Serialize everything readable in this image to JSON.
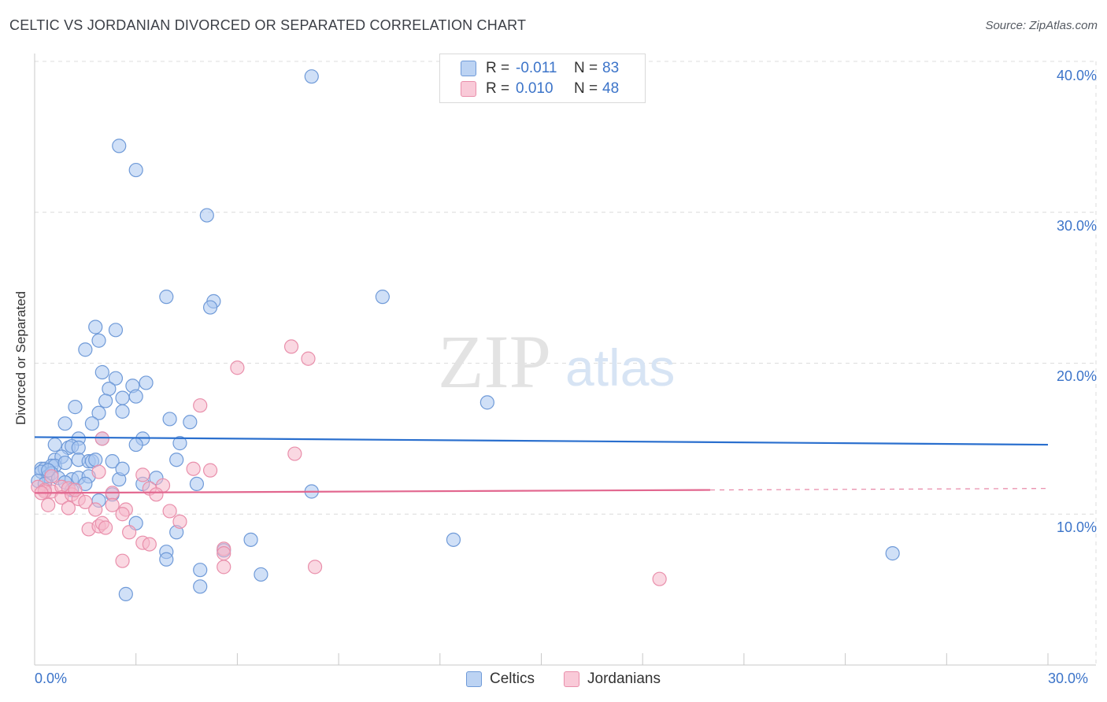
{
  "title": "CELTIC VS JORDANIAN DIVORCED OR SEPARATED CORRELATION CHART",
  "source": "Source: ZipAtlas.com",
  "watermark": {
    "zip": "ZIP",
    "atlas": "atlas"
  },
  "legend": {
    "rows": [
      {
        "r_label": "R =",
        "r_value": "-0.011",
        "n_label": "N =",
        "n_value": "83"
      },
      {
        "r_label": "R =",
        "r_value": "0.010",
        "n_label": "N =",
        "n_value": "48"
      }
    ]
  },
  "bottom_legend": [
    "Celtics",
    "Jordanians"
  ],
  "colors": {
    "celtics_fill": "#a9c6f0",
    "celtics_stroke": "#6f9ad8",
    "celtics_line": "#2a6fce",
    "jordanians_fill": "#f6b8ca",
    "jordanians_stroke": "#e98fab",
    "jordanians_line": "#e2678f",
    "tick_text": "#3c74c9",
    "grid": "#dcdcdc"
  },
  "chart_data": {
    "type": "scatter",
    "title": "CELTIC VS JORDANIAN DIVORCED OR SEPARATED CORRELATION CHART",
    "xlabel": "",
    "ylabel": "Divorced or Separated",
    "xlim": [
      0,
      30
    ],
    "ylim": [
      0,
      40
    ],
    "x_tick_labels": [
      "0.0%",
      "30.0%"
    ],
    "y_ticks": [
      10,
      20,
      30,
      40
    ],
    "y_tick_labels": [
      "10.0%",
      "20.0%",
      "30.0%",
      "40.0%"
    ],
    "grid": true,
    "legend_position": "top-center",
    "series": [
      {
        "name": "Celtics",
        "R": -0.011,
        "N": 83,
        "trend": {
          "x": [
            0,
            30
          ],
          "y": [
            15.1,
            14.6
          ],
          "dashed_from": null
        },
        "points": [
          [
            8.2,
            39.0
          ],
          [
            2.5,
            34.4
          ],
          [
            3.0,
            32.8
          ],
          [
            5.1,
            29.8
          ],
          [
            3.9,
            24.4
          ],
          [
            5.3,
            24.1
          ],
          [
            5.2,
            23.7
          ],
          [
            10.3,
            24.4
          ],
          [
            1.8,
            22.4
          ],
          [
            2.4,
            22.2
          ],
          [
            1.9,
            21.5
          ],
          [
            1.5,
            20.9
          ],
          [
            2.0,
            19.4
          ],
          [
            2.4,
            19.0
          ],
          [
            3.3,
            18.7
          ],
          [
            2.2,
            18.3
          ],
          [
            2.9,
            18.5
          ],
          [
            2.1,
            17.5
          ],
          [
            2.6,
            17.7
          ],
          [
            3.0,
            17.8
          ],
          [
            1.2,
            17.1
          ],
          [
            1.9,
            16.7
          ],
          [
            2.6,
            16.8
          ],
          [
            4.0,
            16.3
          ],
          [
            4.6,
            16.1
          ],
          [
            0.9,
            16.0
          ],
          [
            1.7,
            16.0
          ],
          [
            13.4,
            17.4
          ],
          [
            1.3,
            15.0
          ],
          [
            2.0,
            15.0
          ],
          [
            3.2,
            15.0
          ],
          [
            0.6,
            14.6
          ],
          [
            1.0,
            14.4
          ],
          [
            1.1,
            14.5
          ],
          [
            1.3,
            14.4
          ],
          [
            3.0,
            14.6
          ],
          [
            4.3,
            14.7
          ],
          [
            0.6,
            13.6
          ],
          [
            0.8,
            13.8
          ],
          [
            1.3,
            13.6
          ],
          [
            1.6,
            13.5
          ],
          [
            1.7,
            13.5
          ],
          [
            1.8,
            13.6
          ],
          [
            2.3,
            13.5
          ],
          [
            4.2,
            13.6
          ],
          [
            0.2,
            13.0
          ],
          [
            0.3,
            13.0
          ],
          [
            0.5,
            13.2
          ],
          [
            0.6,
            13.2
          ],
          [
            0.9,
            13.4
          ],
          [
            0.2,
            12.8
          ],
          [
            0.4,
            12.5
          ],
          [
            0.5,
            12.7
          ],
          [
            0.7,
            12.4
          ],
          [
            1.1,
            12.3
          ],
          [
            1.3,
            12.4
          ],
          [
            1.6,
            12.5
          ],
          [
            2.5,
            12.3
          ],
          [
            3.6,
            12.4
          ],
          [
            0.1,
            12.2
          ],
          [
            0.3,
            12.0
          ],
          [
            0.9,
            12.1
          ],
          [
            1.5,
            12.0
          ],
          [
            2.6,
            13.0
          ],
          [
            3.2,
            12.0
          ],
          [
            4.8,
            12.0
          ],
          [
            2.3,
            11.3
          ],
          [
            8.2,
            11.5
          ],
          [
            1.9,
            10.9
          ],
          [
            3.0,
            9.4
          ],
          [
            4.2,
            8.8
          ],
          [
            12.4,
            8.3
          ],
          [
            6.4,
            8.3
          ],
          [
            25.4,
            7.4
          ],
          [
            3.9,
            7.5
          ],
          [
            5.6,
            7.6
          ],
          [
            3.9,
            7.0
          ],
          [
            4.9,
            6.3
          ],
          [
            6.7,
            6.0
          ],
          [
            4.9,
            5.2
          ],
          [
            2.7,
            4.7
          ],
          [
            0.4,
            12.9
          ],
          [
            1.1,
            11.6
          ]
        ]
      },
      {
        "name": "Jordanians",
        "R": 0.01,
        "N": 48,
        "trend": {
          "x": [
            0,
            30
          ],
          "y": [
            11.4,
            11.7
          ],
          "dashed_from": 20.0
        },
        "points": [
          [
            7.6,
            21.1
          ],
          [
            8.1,
            20.3
          ],
          [
            6.0,
            19.7
          ],
          [
            4.9,
            17.2
          ],
          [
            2.0,
            15.0
          ],
          [
            7.7,
            14.0
          ],
          [
            0.5,
            12.5
          ],
          [
            1.9,
            12.8
          ],
          [
            3.2,
            12.6
          ],
          [
            4.7,
            13.0
          ],
          [
            5.2,
            12.9
          ],
          [
            0.1,
            11.8
          ],
          [
            0.3,
            11.6
          ],
          [
            0.5,
            11.5
          ],
          [
            0.8,
            11.8
          ],
          [
            1.0,
            11.7
          ],
          [
            2.3,
            11.4
          ],
          [
            3.4,
            11.7
          ],
          [
            3.8,
            11.9
          ],
          [
            0.3,
            11.5
          ],
          [
            0.8,
            11.1
          ],
          [
            1.1,
            11.3
          ],
          [
            1.3,
            11.0
          ],
          [
            1.5,
            10.8
          ],
          [
            2.3,
            10.6
          ],
          [
            2.7,
            10.3
          ],
          [
            3.6,
            11.3
          ],
          [
            4.0,
            10.2
          ],
          [
            0.4,
            10.6
          ],
          [
            1.0,
            10.4
          ],
          [
            1.8,
            10.3
          ],
          [
            2.6,
            10.0
          ],
          [
            4.3,
            9.5
          ],
          [
            1.6,
            9.0
          ],
          [
            1.9,
            9.2
          ],
          [
            2.0,
            9.4
          ],
          [
            2.1,
            9.1
          ],
          [
            2.8,
            8.8
          ],
          [
            3.2,
            8.1
          ],
          [
            3.4,
            8.0
          ],
          [
            5.6,
            7.7
          ],
          [
            5.6,
            7.4
          ],
          [
            2.6,
            6.9
          ],
          [
            5.6,
            6.5
          ],
          [
            8.3,
            6.5
          ],
          [
            18.5,
            5.7
          ],
          [
            0.2,
            11.4
          ],
          [
            1.2,
            11.6
          ]
        ]
      }
    ]
  }
}
